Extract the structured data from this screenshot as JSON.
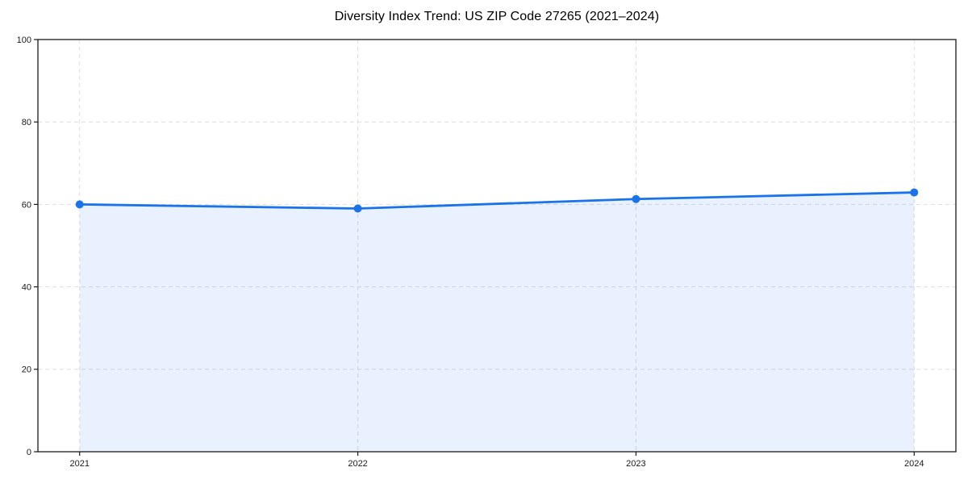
{
  "chart_data": {
    "type": "area",
    "title": "Diversity Index Trend: US ZIP Code 27265 (2021–2024)",
    "x": [
      2021,
      2022,
      2023,
      2024
    ],
    "series": [
      {
        "name": "Diversity Index",
        "values": [
          60.0,
          59.0,
          61.3,
          62.9
        ]
      }
    ],
    "xlabel": "",
    "ylabel": "",
    "xticks": [
      2021,
      2022,
      2023,
      2024
    ],
    "yticks": [
      0,
      20,
      40,
      60,
      80,
      100
    ],
    "ylim": [
      0,
      100
    ],
    "x_margin_fraction": 0.05,
    "grid": true,
    "grid_style": "dashed",
    "legend_position": "none",
    "marker": "circle",
    "colors": {
      "line": "#1a73e8",
      "fill": "#1a73e8",
      "fill_opacity": 0.1,
      "grid": "#dedede",
      "spine": "#1a1a1a",
      "tick_text": "#1a1a1a",
      "title_text": "#000000",
      "background": "#ffffff"
    }
  }
}
